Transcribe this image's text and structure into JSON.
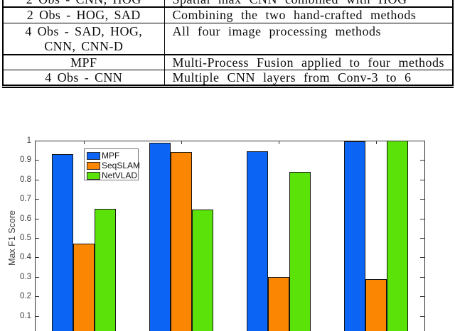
{
  "table": {
    "rows": [
      {
        "method_lines": [
          "2 Obs - CNN, HOG"
        ],
        "description": "Spatial max CNN combined with HOG"
      },
      {
        "method_lines": [
          "2 Obs - HOG, SAD"
        ],
        "description": "Combining the two hand-crafted methods"
      },
      {
        "method_lines": [
          "4 Obs - SAD, HOG,",
          "CNN, CNN-D"
        ],
        "description": "All four image processing methods"
      },
      {
        "method_lines": [
          "MPF"
        ],
        "description": "Multi-Process Fusion applied to four methods"
      },
      {
        "method_lines": [
          "4 Obs - CNN"
        ],
        "description": "Multiple CNN layers from Conv-3 to 6"
      }
    ]
  },
  "chart_data": {
    "type": "bar",
    "ylabel": "Max F1 Score",
    "ylim": [
      0,
      1
    ],
    "ytick_labels": [
      "1",
      "0.9",
      "0.8",
      "0.7",
      "0.6",
      "0.5",
      "0.4",
      "0.3",
      "0.2",
      "0.1"
    ],
    "grid": false,
    "legend_position": "inside-top-left",
    "num_groups": 4,
    "categories": [
      "",
      "",
      "",
      ""
    ],
    "series": [
      {
        "name": "MPF",
        "color": "#0B64F4",
        "values": [
          0.93,
          0.99,
          0.945,
          0.995
        ]
      },
      {
        "name": "SeqSLAM",
        "color": "#FA8602",
        "values": [
          0.47,
          0.94,
          0.3,
          0.29
        ]
      },
      {
        "name": "NetVLAD",
        "color": "#5BE209",
        "values": [
          0.65,
          0.645,
          0.84,
          1.0
        ]
      }
    ]
  }
}
